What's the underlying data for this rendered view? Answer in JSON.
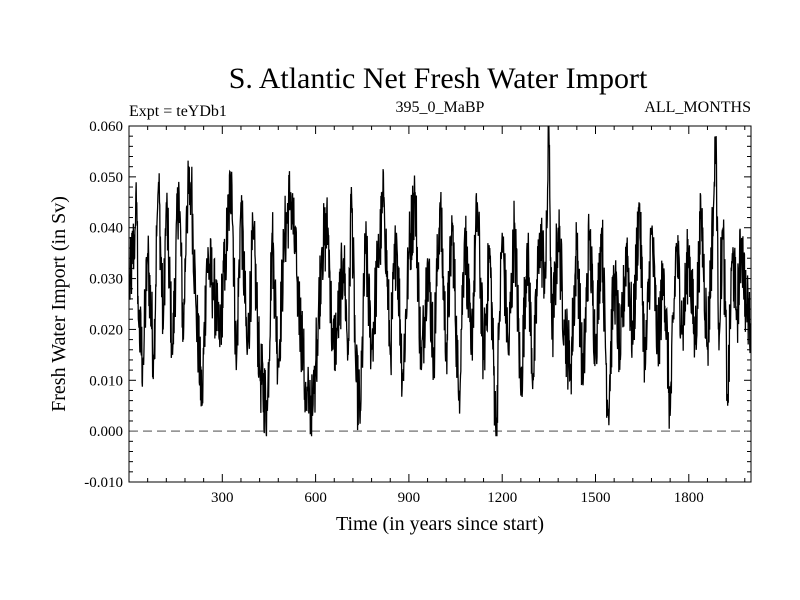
{
  "chart_data": {
    "type": "line",
    "title": "S. Atlantic Net Fresh Water Import",
    "subtitle_left": "Expt = teYDb1",
    "subtitle_center": "395_0_MaBP",
    "subtitle_right": "ALL_MONTHS",
    "xlabel": "Time (in years since start)",
    "ylabel": "Fresh Water Import (in Sv)",
    "xlim": [
      0,
      2000
    ],
    "ylim": [
      -0.01,
      0.06
    ],
    "x_ticks": [
      300,
      600,
      900,
      1200,
      1500,
      1800
    ],
    "x_tick_labels": [
      "300",
      "600",
      "900",
      "1200",
      "1500",
      "1800"
    ],
    "y_ticks": [
      -0.01,
      0.0,
      0.01,
      0.02,
      0.03,
      0.04,
      0.05,
      0.06
    ],
    "y_tick_labels": [
      "-0.010",
      "0.000",
      "0.010",
      "0.020",
      "0.030",
      "0.040",
      "0.050",
      "0.060"
    ],
    "reference_line": {
      "y": 0.0,
      "style": "dashed",
      "color": "#888888"
    },
    "line_color": "#000000",
    "grid": false,
    "series_note": "Noisy annual time series, years 1-2000, mean approx 0.027 Sv",
    "series": [
      {
        "name": "Net Fresh Water Import",
        "anchors": [
          [
            0,
            0.027
          ],
          [
            20,
            0.04
          ],
          [
            25,
            0.045
          ],
          [
            30,
            0.022
          ],
          [
            45,
            0.013
          ],
          [
            60,
            0.035
          ],
          [
            80,
            0.014
          ],
          [
            90,
            0.041
          ],
          [
            95,
            0.049
          ],
          [
            110,
            0.02
          ],
          [
            120,
            0.045
          ],
          [
            140,
            0.015
          ],
          [
            160,
            0.049
          ],
          [
            175,
            0.018
          ],
          [
            185,
            0.044
          ],
          [
            200,
            0.049
          ],
          [
            215,
            0.025
          ],
          [
            235,
            0.005
          ],
          [
            250,
            0.034
          ],
          [
            270,
            0.029
          ],
          [
            290,
            0.018
          ],
          [
            310,
            0.034
          ],
          [
            330,
            0.051
          ],
          [
            345,
            0.012
          ],
          [
            360,
            0.045
          ],
          [
            380,
            0.015
          ],
          [
            400,
            0.039
          ],
          [
            420,
            0.012
          ],
          [
            445,
            0.004
          ],
          [
            460,
            0.039
          ],
          [
            480,
            0.013
          ],
          [
            500,
            0.038
          ],
          [
            520,
            0.047
          ],
          [
            540,
            0.03
          ],
          [
            560,
            0.015
          ],
          [
            570,
            0.004
          ],
          [
            580,
            0.007
          ],
          [
            590,
            0.003
          ],
          [
            600,
            0.013
          ],
          [
            620,
            0.036
          ],
          [
            640,
            0.04
          ],
          [
            655,
            0.016
          ],
          [
            670,
            0.02
          ],
          [
            690,
            0.034
          ],
          [
            705,
            0.015
          ],
          [
            715,
            0.048
          ],
          [
            730,
            0.01
          ],
          [
            745,
            0.004
          ],
          [
            760,
            0.037
          ],
          [
            780,
            0.016
          ],
          [
            800,
            0.033
          ],
          [
            820,
            0.046
          ],
          [
            840,
            0.015
          ],
          [
            860,
            0.039
          ],
          [
            880,
            0.01
          ],
          [
            900,
            0.035
          ],
          [
            920,
            0.047
          ],
          [
            940,
            0.012
          ],
          [
            960,
            0.034
          ],
          [
            980,
            0.015
          ],
          [
            1000,
            0.045
          ],
          [
            1020,
            0.016
          ],
          [
            1040,
            0.041
          ],
          [
            1060,
            0.006
          ],
          [
            1080,
            0.04
          ],
          [
            1100,
            0.015
          ],
          [
            1120,
            0.045
          ],
          [
            1140,
            0.014
          ],
          [
            1160,
            0.036
          ],
          [
            1180,
            -0.001
          ],
          [
            1190,
            0.02
          ],
          [
            1200,
            0.039
          ],
          [
            1220,
            0.015
          ],
          [
            1240,
            0.041
          ],
          [
            1260,
            0.007
          ],
          [
            1280,
            0.037
          ],
          [
            1300,
            0.01
          ],
          [
            1320,
            0.039
          ],
          [
            1340,
            0.03
          ],
          [
            1350,
            0.06
          ],
          [
            1360,
            0.018
          ],
          [
            1380,
            0.04
          ],
          [
            1400,
            0.021
          ],
          [
            1420,
            0.012
          ],
          [
            1440,
            0.037
          ],
          [
            1460,
            0.009
          ],
          [
            1480,
            0.039
          ],
          [
            1500,
            0.016
          ],
          [
            1520,
            0.04
          ],
          [
            1540,
            0.003
          ],
          [
            1560,
            0.031
          ],
          [
            1580,
            0.014
          ],
          [
            1600,
            0.037
          ],
          [
            1620,
            0.017
          ],
          [
            1640,
            0.045
          ],
          [
            1660,
            0.012
          ],
          [
            1680,
            0.04
          ],
          [
            1700,
            0.016
          ],
          [
            1720,
            0.032
          ],
          [
            1740,
            0.003
          ],
          [
            1760,
            0.037
          ],
          [
            1780,
            0.02
          ],
          [
            1800,
            0.036
          ],
          [
            1820,
            0.017
          ],
          [
            1840,
            0.043
          ],
          [
            1860,
            0.016
          ],
          [
            1880,
            0.045
          ],
          [
            1888,
            0.058
          ],
          [
            1895,
            0.02
          ],
          [
            1910,
            0.04
          ],
          [
            1925,
            0.005
          ],
          [
            1940,
            0.035
          ],
          [
            1955,
            0.023
          ],
          [
            1970,
            0.038
          ],
          [
            1985,
            0.024
          ],
          [
            2000,
            0.021
          ]
        ]
      }
    ]
  }
}
